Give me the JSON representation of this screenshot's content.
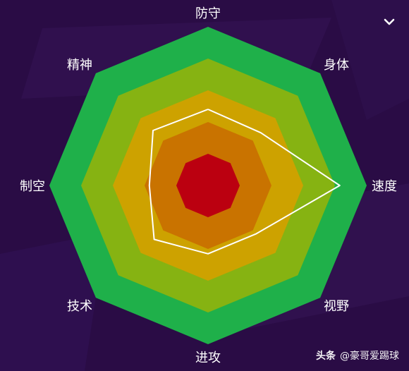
{
  "attributes": {
    "top": "防守",
    "top_right": "身体",
    "right": "速度",
    "bottom_right": "视野",
    "bottom": "进攻",
    "bottom_left": "技术",
    "left": "制空",
    "top_left": "精神"
  },
  "rating_levels": [
    1.0,
    0.8,
    0.6,
    0.4,
    0.2
  ],
  "ring_colors": [
    "#1fb04a",
    "#86b312",
    "#cda200",
    "#c97300",
    "#bb0010"
  ],
  "player_profile": {
    "order": [
      "top",
      "top_right",
      "right",
      "bottom_right",
      "bottom",
      "bottom_left",
      "left",
      "top_left"
    ],
    "values": [
      0.48,
      0.47,
      0.83,
      0.43,
      0.43,
      0.48,
      0.37,
      0.49
    ]
  },
  "colors": {
    "background": "#2a0c45",
    "profile_line": "#ffffff",
    "label_text": "#ffffff"
  },
  "icons": {
    "collapse": "chevron-down-icon"
  },
  "watermark": {
    "brand": "头条",
    "handle": "@豪哥爱踢球"
  }
}
